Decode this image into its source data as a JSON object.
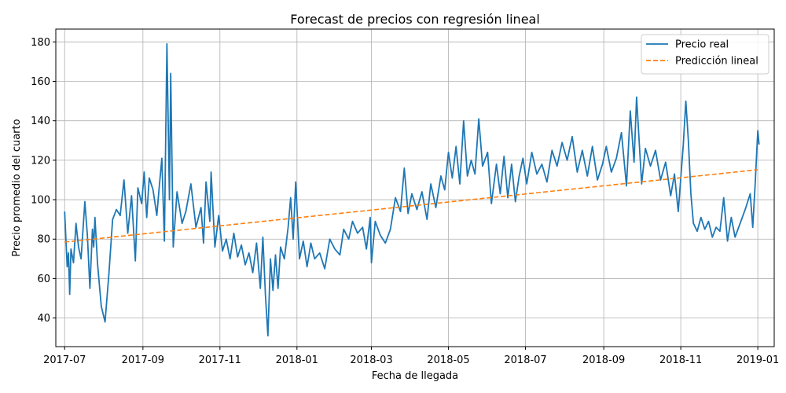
{
  "chart_data": {
    "type": "line",
    "title": "Forecast de precios con regresión lineal",
    "xlabel": "Fecha de llegada",
    "ylabel": "Precio promedio del cuarto",
    "x_range": [
      "2017-06-24",
      "2019-01-14"
    ],
    "ylim": [
      25.5,
      186.5
    ],
    "yticks": [
      40,
      60,
      80,
      100,
      120,
      140,
      160,
      180
    ],
    "xticks": [
      {
        "date": "2017-07-01",
        "label": "2017-07"
      },
      {
        "date": "2017-09-01",
        "label": "2017-09"
      },
      {
        "date": "2017-11-01",
        "label": "2017-11"
      },
      {
        "date": "2018-01-01",
        "label": "2018-01"
      },
      {
        "date": "2018-03-01",
        "label": "2018-03"
      },
      {
        "date": "2018-05-01",
        "label": "2018-05"
      },
      {
        "date": "2018-07-01",
        "label": "2018-07"
      },
      {
        "date": "2018-09-01",
        "label": "2018-09"
      },
      {
        "date": "2018-11-01",
        "label": "2018-11"
      },
      {
        "date": "2019-01-01",
        "label": "2019-01"
      }
    ],
    "grid": true,
    "legend": "top-right",
    "series": [
      {
        "name": "Precio real",
        "color": "#1f77b4",
        "style": "solid",
        "points": [
          [
            "2017-07-01",
            94
          ],
          [
            "2017-07-03",
            66
          ],
          [
            "2017-07-04",
            73
          ],
          [
            "2017-07-05",
            52
          ],
          [
            "2017-07-06",
            75
          ],
          [
            "2017-07-08",
            68
          ],
          [
            "2017-07-10",
            88
          ],
          [
            "2017-07-12",
            76
          ],
          [
            "2017-07-14",
            70
          ],
          [
            "2017-07-17",
            99
          ],
          [
            "2017-07-19",
            82
          ],
          [
            "2017-07-21",
            55
          ],
          [
            "2017-07-23",
            85
          ],
          [
            "2017-07-24",
            76
          ],
          [
            "2017-07-25",
            91
          ],
          [
            "2017-07-27",
            68
          ],
          [
            "2017-07-30",
            46
          ],
          [
            "2017-08-02",
            38
          ],
          [
            "2017-08-05",
            62
          ],
          [
            "2017-08-08",
            90
          ],
          [
            "2017-08-11",
            95
          ],
          [
            "2017-08-14",
            92
          ],
          [
            "2017-08-17",
            110
          ],
          [
            "2017-08-20",
            83
          ],
          [
            "2017-08-23",
            102
          ],
          [
            "2017-08-26",
            69
          ],
          [
            "2017-08-28",
            106
          ],
          [
            "2017-08-31",
            98
          ],
          [
            "2017-09-02",
            114
          ],
          [
            "2017-09-04",
            91
          ],
          [
            "2017-09-06",
            111
          ],
          [
            "2017-09-09",
            105
          ],
          [
            "2017-09-12",
            92
          ],
          [
            "2017-09-14",
            107
          ],
          [
            "2017-09-16",
            121
          ],
          [
            "2017-09-18",
            79
          ],
          [
            "2017-09-20",
            179
          ],
          [
            "2017-09-22",
            100
          ],
          [
            "2017-09-23",
            164
          ],
          [
            "2017-09-25",
            76
          ],
          [
            "2017-09-28",
            104
          ],
          [
            "2017-10-02",
            88
          ],
          [
            "2017-10-05",
            94
          ],
          [
            "2017-10-09",
            108
          ],
          [
            "2017-10-13",
            86
          ],
          [
            "2017-10-17",
            96
          ],
          [
            "2017-10-19",
            78
          ],
          [
            "2017-10-21",
            109
          ],
          [
            "2017-10-24",
            89
          ],
          [
            "2017-10-25",
            114
          ],
          [
            "2017-10-28",
            76
          ],
          [
            "2017-10-31",
            92
          ],
          [
            "2017-11-03",
            74
          ],
          [
            "2017-11-06",
            80
          ],
          [
            "2017-11-09",
            70
          ],
          [
            "2017-11-12",
            83
          ],
          [
            "2017-11-15",
            71
          ],
          [
            "2017-11-18",
            77
          ],
          [
            "2017-11-21",
            67
          ],
          [
            "2017-11-24",
            73
          ],
          [
            "2017-11-27",
            63
          ],
          [
            "2017-11-30",
            78
          ],
          [
            "2017-12-03",
            55
          ],
          [
            "2017-12-05",
            81
          ],
          [
            "2017-12-07",
            52
          ],
          [
            "2017-12-09",
            31
          ],
          [
            "2017-12-11",
            70
          ],
          [
            "2017-12-13",
            54
          ],
          [
            "2017-12-15",
            72
          ],
          [
            "2017-12-17",
            55
          ],
          [
            "2017-12-19",
            76
          ],
          [
            "2017-12-22",
            70
          ],
          [
            "2017-12-25",
            86
          ],
          [
            "2017-12-27",
            101
          ],
          [
            "2017-12-29",
            80
          ],
          [
            "2017-12-31",
            109
          ],
          [
            "2018-01-03",
            70
          ],
          [
            "2018-01-06",
            79
          ],
          [
            "2018-01-09",
            66
          ],
          [
            "2018-01-12",
            78
          ],
          [
            "2018-01-15",
            70
          ],
          [
            "2018-01-19",
            73
          ],
          [
            "2018-01-23",
            65
          ],
          [
            "2018-01-27",
            80
          ],
          [
            "2018-01-31",
            75
          ],
          [
            "2018-02-04",
            72
          ],
          [
            "2018-02-07",
            85
          ],
          [
            "2018-02-11",
            80
          ],
          [
            "2018-02-14",
            89
          ],
          [
            "2018-02-18",
            83
          ],
          [
            "2018-02-22",
            86
          ],
          [
            "2018-02-25",
            75
          ],
          [
            "2018-02-28",
            91
          ],
          [
            "2018-03-01",
            68
          ],
          [
            "2018-03-04",
            89
          ],
          [
            "2018-03-08",
            82
          ],
          [
            "2018-03-12",
            78
          ],
          [
            "2018-03-16",
            85
          ],
          [
            "2018-03-20",
            101
          ],
          [
            "2018-03-24",
            94
          ],
          [
            "2018-03-27",
            116
          ],
          [
            "2018-03-30",
            93
          ],
          [
            "2018-04-02",
            103
          ],
          [
            "2018-04-06",
            95
          ],
          [
            "2018-04-10",
            104
          ],
          [
            "2018-04-14",
            90
          ],
          [
            "2018-04-17",
            108
          ],
          [
            "2018-04-21",
            96
          ],
          [
            "2018-04-25",
            112
          ],
          [
            "2018-04-28",
            105
          ],
          [
            "2018-05-01",
            124
          ],
          [
            "2018-05-04",
            111
          ],
          [
            "2018-05-07",
            127
          ],
          [
            "2018-05-10",
            108
          ],
          [
            "2018-05-13",
            140
          ],
          [
            "2018-05-16",
            112
          ],
          [
            "2018-05-19",
            120
          ],
          [
            "2018-05-22",
            113
          ],
          [
            "2018-05-25",
            141
          ],
          [
            "2018-05-28",
            117
          ],
          [
            "2018-06-01",
            124
          ],
          [
            "2018-06-04",
            98
          ],
          [
            "2018-06-08",
            118
          ],
          [
            "2018-06-11",
            103
          ],
          [
            "2018-06-14",
            122
          ],
          [
            "2018-06-17",
            101
          ],
          [
            "2018-06-20",
            118
          ],
          [
            "2018-06-23",
            99
          ],
          [
            "2018-06-26",
            112
          ],
          [
            "2018-06-29",
            121
          ],
          [
            "2018-07-02",
            108
          ],
          [
            "2018-07-06",
            124
          ],
          [
            "2018-07-10",
            113
          ],
          [
            "2018-07-14",
            118
          ],
          [
            "2018-07-18",
            109
          ],
          [
            "2018-07-22",
            125
          ],
          [
            "2018-07-26",
            117
          ],
          [
            "2018-07-30",
            129
          ],
          [
            "2018-08-03",
            120
          ],
          [
            "2018-08-07",
            132
          ],
          [
            "2018-08-11",
            114
          ],
          [
            "2018-08-15",
            125
          ],
          [
            "2018-08-19",
            112
          ],
          [
            "2018-08-23",
            127
          ],
          [
            "2018-08-27",
            110
          ],
          [
            "2018-08-31",
            118
          ],
          [
            "2018-09-03",
            127
          ],
          [
            "2018-09-07",
            114
          ],
          [
            "2018-09-11",
            121
          ],
          [
            "2018-09-15",
            134
          ],
          [
            "2018-09-19",
            107
          ],
          [
            "2018-09-22",
            145
          ],
          [
            "2018-09-25",
            119
          ],
          [
            "2018-09-27",
            152
          ],
          [
            "2018-10-01",
            108
          ],
          [
            "2018-10-04",
            126
          ],
          [
            "2018-10-08",
            117
          ],
          [
            "2018-10-12",
            125
          ],
          [
            "2018-10-16",
            110
          ],
          [
            "2018-10-20",
            119
          ],
          [
            "2018-10-24",
            102
          ],
          [
            "2018-10-27",
            113
          ],
          [
            "2018-10-30",
            94
          ],
          [
            "2018-11-03",
            128
          ],
          [
            "2018-11-05",
            150
          ],
          [
            "2018-11-07",
            130
          ],
          [
            "2018-11-09",
            103
          ],
          [
            "2018-11-11",
            88
          ],
          [
            "2018-11-14",
            84
          ],
          [
            "2018-11-17",
            91
          ],
          [
            "2018-11-20",
            85
          ],
          [
            "2018-11-23",
            89
          ],
          [
            "2018-11-26",
            81
          ],
          [
            "2018-11-29",
            86
          ],
          [
            "2018-12-02",
            84
          ],
          [
            "2018-12-05",
            101
          ],
          [
            "2018-12-08",
            79
          ],
          [
            "2018-12-11",
            91
          ],
          [
            "2018-12-14",
            81
          ],
          [
            "2018-12-18",
            88
          ],
          [
            "2018-12-22",
            95
          ],
          [
            "2018-12-26",
            103
          ],
          [
            "2018-12-28",
            86
          ],
          [
            "2018-12-30",
            109
          ],
          [
            "2019-01-01",
            135
          ],
          [
            "2019-01-02",
            128
          ]
        ]
      },
      {
        "name": "Predicción lineal",
        "color": "#ff7f0e",
        "style": "dashed",
        "points": [
          [
            "2017-07-01",
            78.5
          ],
          [
            "2019-01-01",
            115.2
          ]
        ]
      }
    ]
  }
}
